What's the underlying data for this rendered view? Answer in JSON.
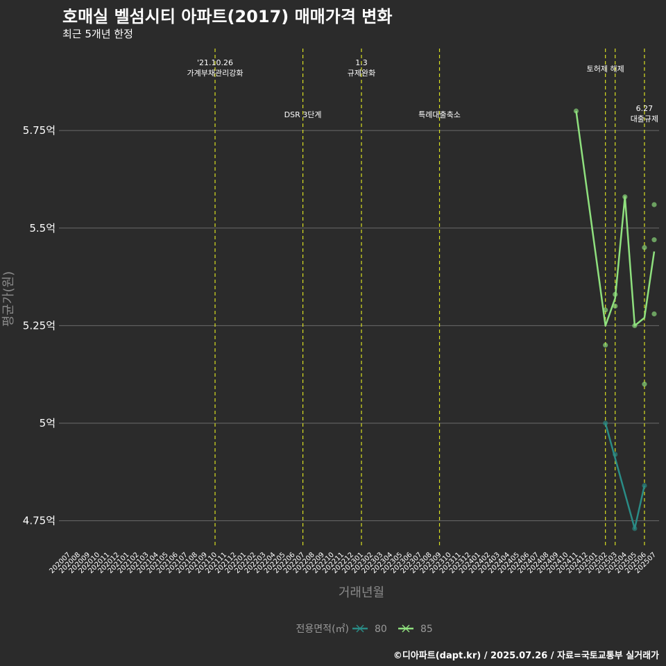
{
  "title": "호매실 벨섬시티 아파트(2017) 매매가격 변화",
  "subtitle": "최근 5개년 한정",
  "caption": "©디아파트(dapt.kr) / 2025.07.26 / 자료=국토교통부 실거래가",
  "colors": {
    "background": "#2b2b2b",
    "grid": "#6b6b6b",
    "event_line": "#d9e021",
    "series_80": "#2a8c86",
    "series_85": "#8fe07e"
  },
  "chart_data": {
    "type": "line",
    "xlabel": "거래년월",
    "ylabel": "평균가(원)",
    "ylim": [
      4.68,
      5.96
    ],
    "y_ticks": [
      4.75,
      5.0,
      5.25,
      5.5,
      5.75
    ],
    "y_tick_labels": [
      "4.75억",
      "5억",
      "5.25억",
      "5.5억",
      "5.75억"
    ],
    "x_categories": [
      "202007",
      "202008",
      "202009",
      "202010",
      "202011",
      "202012",
      "202101",
      "202102",
      "202103",
      "202104",
      "202105",
      "202106",
      "202107",
      "202108",
      "202109",
      "202110",
      "202111",
      "202112",
      "202201",
      "202202",
      "202203",
      "202204",
      "202205",
      "202206",
      "202207",
      "202208",
      "202209",
      "202210",
      "202211",
      "202212",
      "202301",
      "202302",
      "202303",
      "202304",
      "202305",
      "202306",
      "202307",
      "202308",
      "202309",
      "202310",
      "202311",
      "202312",
      "202401",
      "202402",
      "202403",
      "202404",
      "202405",
      "202406",
      "202407",
      "202408",
      "202409",
      "202410",
      "202411",
      "202412",
      "202501",
      "202502",
      "202503",
      "202504",
      "202505",
      "202506",
      "202507"
    ],
    "events": [
      {
        "month": "202110",
        "label": [
          "'21.10.26",
          "가계부채관리강화"
        ],
        "row": "top"
      },
      {
        "month": "202207",
        "label": [
          "DSR 3단계"
        ],
        "row": "mid"
      },
      {
        "month": "202301",
        "label": [
          "1.3",
          "규제완화"
        ],
        "row": "top"
      },
      {
        "month": "202309",
        "label": [
          "특례대출축소"
        ],
        "row": "mid"
      },
      {
        "month": "202502",
        "label": [
          "토허제 해제"
        ],
        "row": "top"
      },
      {
        "month": "202503",
        "label": [],
        "row": "none"
      },
      {
        "month": "202506",
        "label": [
          "6.27",
          "대출규제"
        ],
        "row": "mid"
      }
    ],
    "series": [
      {
        "name": "80",
        "line": [
          [
            "202502",
            5.0
          ],
          [
            "202505",
            4.73
          ],
          [
            "202506",
            4.84
          ]
        ],
        "points": [
          [
            "202502",
            5.0
          ],
          [
            "202503",
            4.92
          ],
          [
            "202505",
            4.73
          ],
          [
            "202506",
            4.84
          ]
        ]
      },
      {
        "name": "85",
        "line": [
          [
            "202411",
            5.8
          ],
          [
            "202502",
            5.25
          ],
          [
            "202503",
            5.32
          ],
          [
            "202504",
            5.58
          ],
          [
            "202505",
            5.25
          ],
          [
            "202506",
            5.27
          ],
          [
            "202507",
            5.44
          ]
        ],
        "points": [
          [
            "202411",
            5.8
          ],
          [
            "202502",
            5.29
          ],
          [
            "202502",
            5.2
          ],
          [
            "202503",
            5.3
          ],
          [
            "202503",
            5.33
          ],
          [
            "202504",
            5.58
          ],
          [
            "202505",
            5.25
          ],
          [
            "202506",
            5.45
          ],
          [
            "202506",
            5.1
          ],
          [
            "202507",
            5.56
          ],
          [
            "202507",
            5.47
          ],
          [
            "202507",
            5.28
          ]
        ]
      }
    ],
    "legend": {
      "title": "전용면적(㎡)",
      "position": "bottom",
      "entries": [
        "80",
        "85"
      ]
    }
  }
}
